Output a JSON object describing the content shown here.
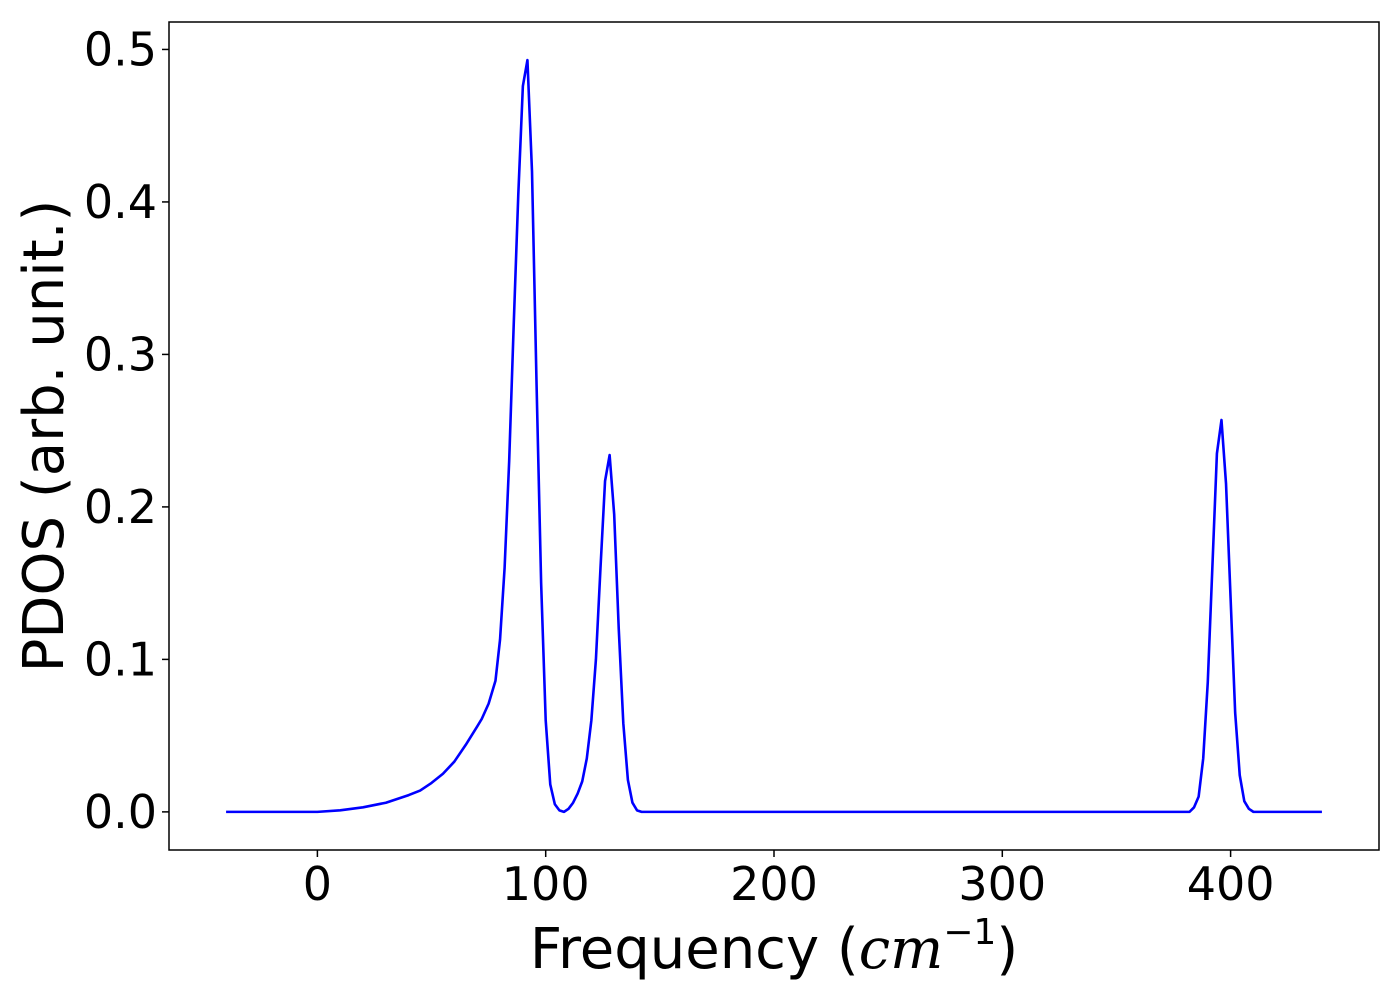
{
  "chart_data": {
    "type": "line",
    "title": "",
    "xlabel": "Frequency",
    "xlabel_math": "cm",
    "xlabel_math_exp": "−1",
    "ylabel": "PDOS (arb. unit.)",
    "xlim": [
      -65,
      465
    ],
    "ylim": [
      -0.025,
      0.518
    ],
    "xticks": [
      0,
      100,
      200,
      300,
      400
    ],
    "xtick_labels": [
      "0",
      "100",
      "200",
      "300",
      "400"
    ],
    "yticks": [
      0.0,
      0.1,
      0.2,
      0.3,
      0.4,
      0.5
    ],
    "ytick_labels": [
      "0.0",
      "0.1",
      "0.2",
      "0.3",
      "0.4",
      "0.5"
    ],
    "grid": false,
    "series": [
      {
        "color": "#0000ff",
        "x": [
          -40,
          -20,
          0,
          10,
          20,
          30,
          40,
          45,
          50,
          55,
          60,
          65,
          70,
          72,
          75,
          78,
          80,
          82,
          84,
          86,
          88,
          90,
          92,
          94,
          96,
          98,
          100,
          102,
          104,
          106,
          108,
          110,
          112,
          114,
          116,
          118,
          120,
          122,
          124,
          126,
          128,
          130,
          132,
          134,
          136,
          138,
          140,
          142,
          144,
          146,
          148,
          150,
          152,
          155,
          160,
          200,
          300,
          375,
          380,
          382,
          384,
          386,
          388,
          390,
          392,
          394,
          396,
          398,
          400,
          402,
          404,
          406,
          408,
          410,
          412,
          415,
          420,
          440
        ],
        "y": [
          0.0,
          0.0,
          0.0,
          0.001,
          0.003,
          0.006,
          0.011,
          0.014,
          0.019,
          0.025,
          0.033,
          0.044,
          0.056,
          0.061,
          0.071,
          0.086,
          0.113,
          0.16,
          0.23,
          0.32,
          0.405,
          0.476,
          0.493,
          0.42,
          0.28,
          0.15,
          0.06,
          0.018,
          0.005,
          0.001,
          0.0,
          0.002,
          0.006,
          0.012,
          0.02,
          0.035,
          0.06,
          0.1,
          0.16,
          0.217,
          0.234,
          0.195,
          0.12,
          0.058,
          0.021,
          0.006,
          0.001,
          0.0,
          0.0,
          0.0,
          0.0,
          0.0,
          0.0,
          0.0,
          0.0,
          0.0,
          0.0,
          0.0,
          0.0,
          0.0,
          0.003,
          0.01,
          0.035,
          0.085,
          0.16,
          0.235,
          0.257,
          0.215,
          0.14,
          0.065,
          0.024,
          0.007,
          0.002,
          0.0,
          0.0,
          0.0,
          0.0,
          0.0
        ]
      }
    ]
  }
}
